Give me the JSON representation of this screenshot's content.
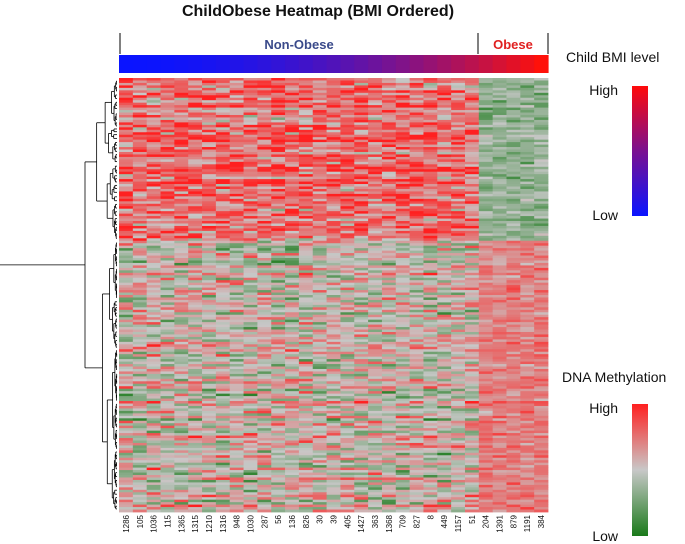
{
  "chart_data": {
    "type": "heatmap",
    "title": "ChildObese Heatmap (BMI Ordered)",
    "columns": [
      "1286",
      "105",
      "1036",
      "115",
      "1365",
      "1315",
      "1210",
      "1316",
      "948",
      "1030",
      "287",
      "56",
      "136",
      "826",
      "30",
      "39",
      "405",
      "1427",
      "363",
      "1368",
      "709",
      "827",
      "8",
      "449",
      "1157",
      "51",
      "204",
      "1391",
      "879",
      "1191",
      "384"
    ],
    "groups": [
      {
        "label": "Non-Obese",
        "color": "#3a4a8a",
        "n_columns": 26
      },
      {
        "label": "Obese",
        "color": "#e02020",
        "n_columns": 5
      }
    ],
    "bmi_bar": {
      "low_color": "#0a14ff",
      "high_color": "#ff0a0a"
    },
    "row_clusters": [
      {
        "rows": 66,
        "nonobese_bias": 0.55,
        "obese_bias": -0.3
      },
      {
        "rows": 110,
        "nonobese_bias": 0.05,
        "obese_bias": 0.45
      }
    ],
    "legend_bmi": {
      "title": "Child BMI level",
      "high": "High",
      "low": "Low"
    },
    "legend_methylation": {
      "title": "DNA Methylation",
      "high": "High",
      "low": "Low",
      "low_color": "#1a7a1a",
      "mid_color": "#c8c8c8",
      "high_color": "#ff2020"
    }
  }
}
